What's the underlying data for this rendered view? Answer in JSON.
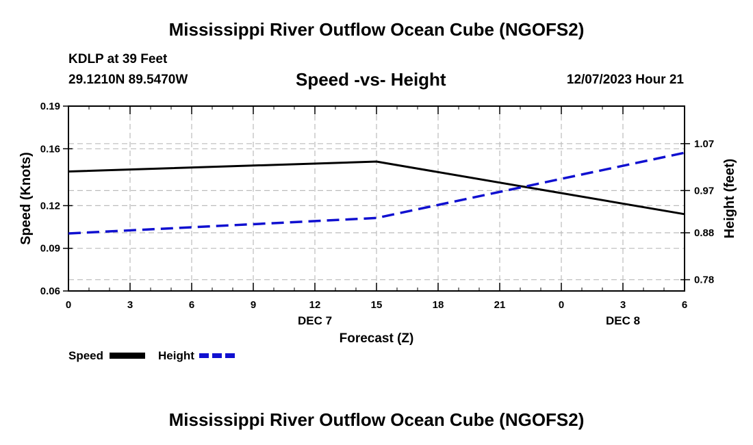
{
  "header": {
    "title": "Mississippi River Outflow Ocean Cube (NGOFS2)",
    "station": "KDLP at 39 Feet",
    "coordinates": "29.1210N  89.5470W",
    "subtitle": "Speed -vs- Height",
    "datetime": "12/07/2023 Hour 21"
  },
  "footer": {
    "title": "Mississippi River Outflow Ocean Cube (NGOFS2)"
  },
  "legend": {
    "speed_label": "Speed",
    "height_label": "Height"
  },
  "colors": {
    "speed": "#000000",
    "height": "#1010d0",
    "grid": "#bbbbbb"
  },
  "chart_data": {
    "type": "line",
    "xlabel": "Forecast (Z)",
    "ylabel": "Speed (Knots)",
    "y2label": "Height (feet)",
    "x_ticks": [
      "0",
      "3",
      "6",
      "9",
      "12",
      "15",
      "18",
      "21",
      "0",
      "3",
      "6"
    ],
    "x_range": [
      0,
      30
    ],
    "date_labels": [
      {
        "label": "DEC 7",
        "x": 12
      },
      {
        "label": "DEC 8",
        "x": 27
      }
    ],
    "ylim": [
      0.06,
      0.19
    ],
    "y_ticks": [
      "0.19",
      "0.16",
      "0.12",
      "0.09",
      "0.06"
    ],
    "y_tick_values": [
      0.19,
      0.16,
      0.12,
      0.09,
      0.06
    ],
    "y2lim": [
      0.756,
      1.15
    ],
    "y2_ticks": [
      "1.07",
      "0.97",
      "0.88",
      "0.78"
    ],
    "y2_tick_values": [
      1.07,
      0.97,
      0.88,
      0.78
    ],
    "grid": true,
    "series": [
      {
        "name": "Speed",
        "axis": "left",
        "style": "solid",
        "x": [
          0,
          15,
          30
        ],
        "values": [
          0.144,
          0.151,
          0.114
        ]
      },
      {
        "name": "Height",
        "axis": "right",
        "style": "dashed",
        "x": [
          0,
          15,
          30
        ],
        "values": [
          0.8786,
          0.9115,
          1.0506
        ]
      }
    ]
  }
}
